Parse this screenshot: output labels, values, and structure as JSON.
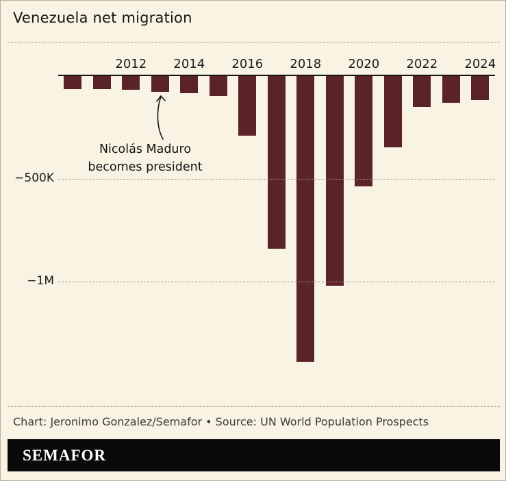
{
  "header": {
    "title": "Venezuela net migration"
  },
  "annotation": {
    "line1": "Nicolás Maduro",
    "line2": "becomes president"
  },
  "footer": {
    "credit": "Chart: Jeronimo Gonzalez/Semafor • Source: UN World Population Prospects"
  },
  "brand": {
    "logo": "SEMAFOR"
  },
  "colors": {
    "bar": "#5a2328",
    "background": "#f8f3e2",
    "grid": "#9a9a90",
    "baseline": "#151515",
    "brand_bar": "#0a0a0a"
  },
  "chart_data": {
    "type": "bar",
    "title": "Venezuela net migration",
    "x": [
      2010,
      2011,
      2012,
      2013,
      2014,
      2015,
      2016,
      2017,
      2018,
      2019,
      2020,
      2021,
      2022,
      2023,
      2024
    ],
    "values": [
      -62000,
      -62000,
      -68000,
      -75000,
      -84000,
      -95000,
      -290000,
      -840000,
      -1390000,
      -1020000,
      -535000,
      -345000,
      -150000,
      -130000,
      -115000
    ],
    "x_ticks": [
      2012,
      2014,
      2016,
      2018,
      2020,
      2022,
      2024
    ],
    "y_ticks": [
      {
        "label": "−500K",
        "value": -500000
      },
      {
        "label": "−1M",
        "value": -1000000
      }
    ],
    "xlabel": "",
    "ylabel": "",
    "ylim": [
      -1450000,
      0
    ],
    "grid": "horizontal-dashed",
    "legend": "none",
    "annotation": "Nicolás Maduro becomes president"
  }
}
